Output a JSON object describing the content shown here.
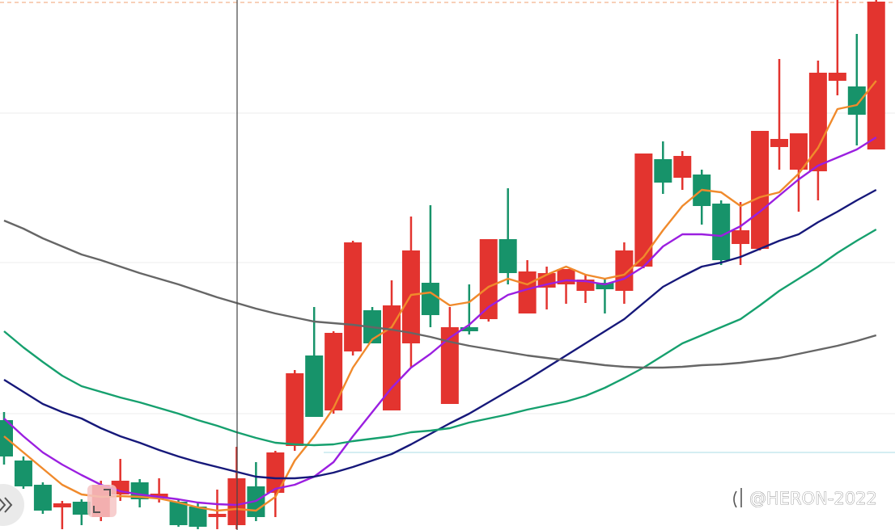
{
  "chart_data": {
    "type": "candlestick",
    "watermark": "@HERON-2022",
    "ylim": [
      0,
      656
    ],
    "up_color": "#e3342f",
    "down_color": "#17936a",
    "open": [
      136,
      86,
      56,
      28,
      35,
      16,
      44,
      59,
      39,
      35,
      29,
      16,
      6,
      54,
      46,
      104,
      216,
      148,
      221,
      272,
      148,
      231,
      306,
      156,
      251,
      261,
      360,
      268,
      300,
      304,
      296,
      306,
      296,
      326,
      459,
      436,
      440,
      404,
      354,
      348,
      474,
      446,
      444,
      556,
      549,
      471
    ],
    "high": [
      146,
      91,
      59,
      36,
      38,
      61,
      88,
      63,
      64,
      38,
      34,
      50,
      103,
      84,
      98,
      198,
      276,
      246,
      358,
      276,
      309,
      388,
      402,
      276,
      304,
      360,
      423,
      334,
      326,
      323,
      316,
      311,
      356,
      466,
      481,
      469,
      446,
      408,
      406,
      494,
      583,
      491,
      581,
      656,
      614,
      656
    ],
    "low": [
      81,
      51,
      20,
      1,
      6,
      11,
      36,
      28,
      34,
      4,
      1,
      1,
      1,
      11,
      16,
      98,
      140,
      144,
      216,
      231,
      148,
      201,
      251,
      156,
      242,
      258,
      304,
      268,
      273,
      280,
      281,
      268,
      280,
      324,
      416,
      421,
      378,
      328,
      328,
      346,
      446,
      394,
      408,
      538,
      476,
      471
    ],
    "close": [
      91,
      54,
      24,
      33,
      19,
      56,
      61,
      38,
      45,
      6,
      4,
      20,
      64,
      16,
      96,
      194,
      140,
      244,
      356,
      231,
      278,
      346,
      266,
      251,
      246,
      360,
      318,
      320,
      318,
      323,
      310,
      298,
      346,
      466,
      430,
      463,
      401,
      334,
      371,
      494,
      484,
      491,
      566,
      566,
      514,
      654
    ],
    "lines": [
      {
        "color": "#f08a2c",
        "values": [
          116,
          96,
          76,
          56,
          44,
          41,
          42,
          41,
          39,
          34,
          28,
          24,
          26,
          24,
          41,
          86,
          116,
          151,
          201,
          236,
          251,
          291,
          294,
          278,
          282,
          301,
          311,
          304,
          316,
          326,
          316,
          311,
          316,
          338,
          371,
          401,
          421,
          418,
          401,
          412,
          418,
          441,
          473,
          521,
          526,
          556
        ]
      },
      {
        "color": "#9b1fe0",
        "values": [
          138,
          116,
          96,
          81,
          68,
          56,
          48,
          44,
          41,
          38,
          34,
          32,
          31,
          36,
          51,
          56,
          66,
          84,
          116,
          146,
          176,
          201,
          218,
          238,
          254,
          276,
          291,
          298,
          304,
          309,
          308,
          304,
          311,
          326,
          351,
          366,
          366,
          364,
          376,
          394,
          414,
          434,
          451,
          461,
          471,
          486
        ]
      },
      {
        "color": "#16187a",
        "values": [
          186,
          171,
          156,
          146,
          138,
          126,
          116,
          108,
          99,
          91,
          84,
          78,
          72,
          66,
          64,
          64,
          66,
          71,
          78,
          86,
          94,
          106,
          119,
          132,
          144,
          158,
          172,
          186,
          201,
          216,
          231,
          246,
          261,
          281,
          301,
          314,
          326,
          331,
          338,
          348,
          358,
          366,
          381,
          394,
          408,
          421
        ]
      },
      {
        "color": "#16a06e",
        "values": [
          246,
          226,
          208,
          191,
          178,
          171,
          164,
          158,
          151,
          144,
          136,
          129,
          121,
          114,
          108,
          106,
          105,
          106,
          110,
          113,
          116,
          121,
          123,
          126,
          133,
          138,
          143,
          149,
          154,
          159,
          166,
          176,
          188,
          201,
          216,
          231,
          241,
          251,
          261,
          278,
          296,
          311,
          326,
          343,
          358,
          372
        ]
      },
      {
        "color": "#666666",
        "values": [
          383,
          373,
          361,
          351,
          341,
          334,
          326,
          318,
          311,
          304,
          296,
          288,
          281,
          274,
          268,
          263,
          258,
          256,
          254,
          251,
          248,
          244,
          239,
          233,
          228,
          224,
          220,
          216,
          213,
          210,
          207,
          204,
          202,
          201,
          201,
          202,
          204,
          205,
          207,
          210,
          213,
          218,
          223,
          228,
          234,
          241
        ]
      }
    ]
  }
}
